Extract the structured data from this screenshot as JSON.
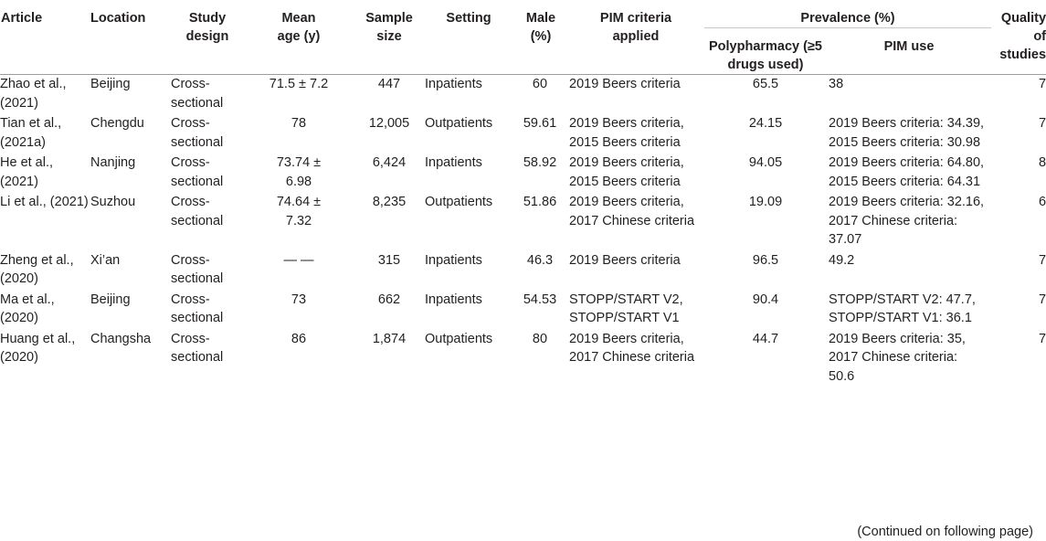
{
  "headers": {
    "article": "Article",
    "location": "Location",
    "study_design": "Study design",
    "mean_age": "Mean age (y)",
    "sample_size": "Sample size",
    "setting": "Setting",
    "male": "Male (%)",
    "pim_criteria": "PIM criteria applied",
    "prevalence": "Prevalence (%)",
    "polypharmacy": "Polypharmacy (≥5 drugs used)",
    "pim_use": "PIM use",
    "quality": "Quality of studies"
  },
  "rows": [
    {
      "article": "Zhao et al., (2021)",
      "location": "Beijing",
      "design": "Cross-sectional",
      "age": "71.5 ± 7.2",
      "sample": "447",
      "setting": "Inpatients",
      "male": "60",
      "criteria": "2019 Beers criteria",
      "polypharmacy": "65.5",
      "pim_use": "38",
      "quality": "7"
    },
    {
      "article": "Tian et al., (2021a)",
      "location": "Chengdu",
      "design": "Cross-sectional",
      "age": "78",
      "sample": "12,005",
      "setting": "Outpatients",
      "male": "59.61",
      "criteria": "2019 Beers criteria, 2015 Beers criteria",
      "polypharmacy": "24.15",
      "pim_use": "2019 Beers criteria: 34.39, 2015 Beers criteria: 30.98",
      "quality": "7"
    },
    {
      "article": "He et al., (2021)",
      "location": "Nanjing",
      "design": "Cross-sectional",
      "age": "73.74 ± 6.98",
      "sample": "6,424",
      "setting": "Inpatients",
      "male": "58.92",
      "criteria": "2019 Beers criteria, 2015 Beers criteria",
      "polypharmacy": "94.05",
      "pim_use": "2019 Beers criteria: 64.80, 2015 Beers criteria: 64.31",
      "quality": "8"
    },
    {
      "article": "Li et al., (2021)",
      "location": "Suzhou",
      "design": "Cross-sectional",
      "age": "74.64 ± 7.32",
      "sample": "8,235",
      "setting": "Outpatients",
      "male": "51.86",
      "criteria": "2019 Beers criteria, 2017 Chinese criteria",
      "polypharmacy": "19.09",
      "pim_use": "2019 Beers criteria: 32.16, 2017 Chinese criteria: 37.07",
      "quality": "6"
    },
    {
      "article": "Zheng et al., (2020)",
      "location": "Xi’an",
      "design": "Cross-sectional",
      "age": "— —",
      "sample": "315",
      "setting": "Inpatients",
      "male": "46.3",
      "criteria": "2019 Beers criteria",
      "polypharmacy": "96.5",
      "pim_use": "49.2",
      "quality": "7"
    },
    {
      "article": "Ma et al., (2020)",
      "location": "Beijing",
      "design": "Cross-sectional",
      "age": "73",
      "sample": "662",
      "setting": "Inpatients",
      "male": "54.53",
      "criteria": "STOPP/START V2, STOPP/START V1",
      "polypharmacy": "90.4",
      "pim_use": "STOPP/START V2: 47.7, STOPP/START V1: 36.1",
      "quality": "7"
    },
    {
      "article": "Huang et al., (2020)",
      "location": "Changsha",
      "design": "Cross-sectional",
      "age": "86",
      "sample": "1,874",
      "setting": "Outpatients",
      "male": "80",
      "criteria": "2019 Beers criteria, 2017 Chinese criteria",
      "polypharmacy": "44.7",
      "pim_use": "2019 Beers criteria: 35, 2017 Chinese criteria: 50.6",
      "quality": "7"
    }
  ],
  "footer": "(Continued on following page)"
}
